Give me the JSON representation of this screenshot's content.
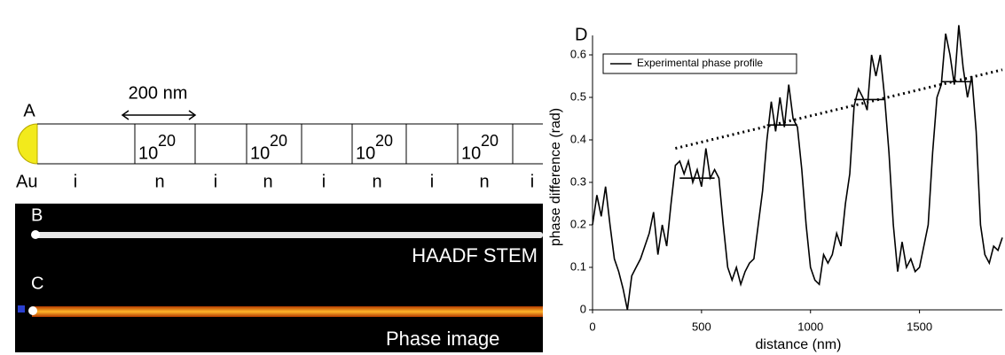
{
  "diagram": {
    "panel_a": {
      "label": "A",
      "tip_label": "Au",
      "scale_label": "200 nm",
      "segments": [
        {
          "base": "10",
          "exp": "20"
        },
        {
          "base": "10",
          "exp": "20"
        },
        {
          "base": "10",
          "exp": "20"
        },
        {
          "base": "10",
          "exp": "20"
        }
      ],
      "region_labels": [
        "i",
        "n",
        "i",
        "n",
        "i",
        "n",
        "i",
        "n",
        "i"
      ]
    },
    "panel_b": {
      "label": "B",
      "caption": "HAADF STEM"
    },
    "panel_c": {
      "label": "C",
      "caption": "Phase image"
    }
  },
  "chart_data": {
    "type": "line",
    "label": "D",
    "x_label": "distance (nm)",
    "y_label": "phase difference (rad)",
    "xlim": [
      0,
      1880
    ],
    "ylim": [
      0,
      0.7
    ],
    "xticks": [
      0,
      500,
      1000,
      1500
    ],
    "yticks": [
      0,
      0.1,
      0.2,
      0.3,
      0.4,
      0.5,
      0.6
    ],
    "legend": "upper left",
    "series": [
      {
        "name": "Experimental phase profile",
        "color": "#000000",
        "x": [
          0,
          20,
          40,
          60,
          80,
          100,
          120,
          140,
          160,
          180,
          200,
          220,
          240,
          260,
          280,
          300,
          320,
          340,
          360,
          380,
          400,
          420,
          440,
          460,
          480,
          500,
          520,
          540,
          560,
          580,
          600,
          620,
          640,
          660,
          680,
          700,
          720,
          740,
          760,
          780,
          800,
          820,
          840,
          860,
          880,
          900,
          920,
          940,
          960,
          980,
          1000,
          1020,
          1040,
          1060,
          1080,
          1100,
          1120,
          1140,
          1160,
          1180,
          1200,
          1220,
          1240,
          1260,
          1280,
          1300,
          1320,
          1340,
          1360,
          1380,
          1400,
          1420,
          1440,
          1460,
          1480,
          1500,
          1520,
          1540,
          1560,
          1580,
          1600,
          1620,
          1640,
          1660,
          1680,
          1700,
          1720,
          1740,
          1760,
          1780,
          1800,
          1820,
          1840,
          1860,
          1880
        ],
        "values": [
          0.2,
          0.27,
          0.22,
          0.29,
          0.2,
          0.12,
          0.09,
          0.05,
          0.0,
          0.08,
          0.1,
          0.12,
          0.15,
          0.18,
          0.23,
          0.13,
          0.2,
          0.15,
          0.25,
          0.34,
          0.35,
          0.32,
          0.35,
          0.3,
          0.33,
          0.29,
          0.38,
          0.31,
          0.33,
          0.31,
          0.2,
          0.1,
          0.07,
          0.1,
          0.06,
          0.09,
          0.11,
          0.12,
          0.2,
          0.28,
          0.4,
          0.49,
          0.42,
          0.5,
          0.43,
          0.53,
          0.45,
          0.43,
          0.33,
          0.2,
          0.1,
          0.07,
          0.06,
          0.13,
          0.11,
          0.13,
          0.18,
          0.15,
          0.25,
          0.32,
          0.48,
          0.52,
          0.5,
          0.47,
          0.6,
          0.55,
          0.6,
          0.5,
          0.37,
          0.2,
          0.09,
          0.16,
          0.1,
          0.12,
          0.09,
          0.1,
          0.15,
          0.2,
          0.37,
          0.5,
          0.53,
          0.65,
          0.6,
          0.53,
          0.67,
          0.57,
          0.5,
          0.55,
          0.42,
          0.2,
          0.13,
          0.11,
          0.15,
          0.14,
          0.17
        ]
      }
    ],
    "trend": {
      "x": [
        380,
        1880
      ],
      "values": [
        0.38,
        0.565
      ]
    },
    "levels": [
      {
        "x": [
          400,
          560
        ],
        "value": 0.31
      },
      {
        "x": [
          800,
          940
        ],
        "value": 0.435
      },
      {
        "x": [
          1200,
          1340
        ],
        "value": 0.495
      },
      {
        "x": [
          1600,
          1740
        ],
        "value": 0.537
      }
    ]
  }
}
